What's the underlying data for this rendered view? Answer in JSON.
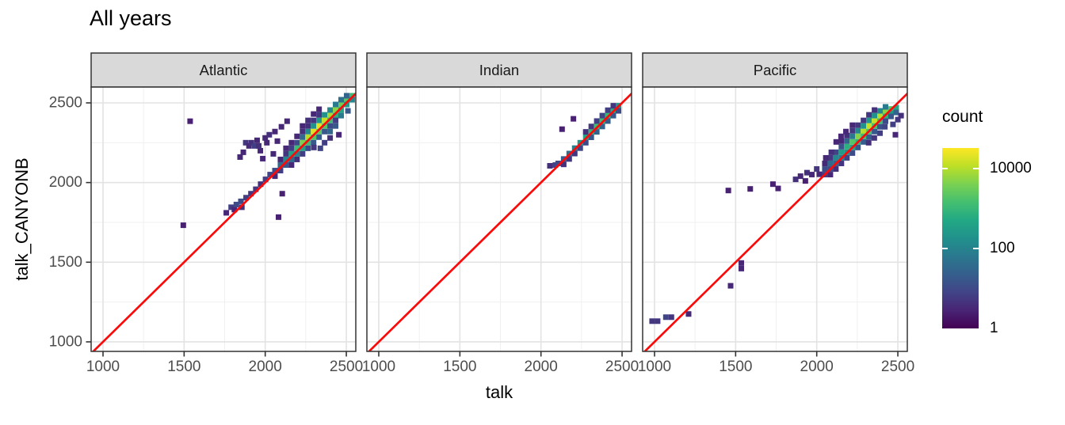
{
  "chart_data": {
    "type": "heatmap",
    "variant": "2d-binned-scatter (geom_bin2d) with identity reference line, faceted by ocean",
    "title": "All years",
    "xlabel": "talk",
    "ylabel": "talk_CANYONB",
    "x_ticks": [
      1000,
      1500,
      2000,
      2500
    ],
    "y_ticks": [
      1000,
      1500,
      2000,
      2500
    ],
    "x_minor": [
      1250,
      1750,
      2250
    ],
    "y_minor": [
      1250,
      1750,
      2250
    ],
    "x_range": [
      930,
      2560
    ],
    "y_range": [
      940,
      2600
    ],
    "bin_width": 34,
    "grid": "major and minor, light gray on white panels",
    "identity_line": "y = x",
    "legend": {
      "title": "count",
      "scale": "log10 viridis",
      "ticks": [
        {
          "label": "10000",
          "log10": 4
        },
        {
          "label": "100",
          "log10": 2
        },
        {
          "label": "1",
          "log10": 0
        }
      ],
      "max_log10": 4.5,
      "position": "right"
    },
    "facets": [
      {
        "label": "Atlantic",
        "bins": [
          [
            2060,
            2075,
            1
          ],
          [
            2060,
            2040,
            0.5
          ],
          [
            2094,
            2110,
            1.5
          ],
          [
            2094,
            2075,
            0.8
          ],
          [
            2094,
            2145,
            0.5
          ],
          [
            2128,
            2145,
            2
          ],
          [
            2128,
            2110,
            1.2
          ],
          [
            2128,
            2180,
            0.7
          ],
          [
            2162,
            2180,
            2.5
          ],
          [
            2162,
            2145,
            1.5
          ],
          [
            2162,
            2215,
            0.8
          ],
          [
            2162,
            2110,
            0.5
          ],
          [
            2196,
            2215,
            3
          ],
          [
            2196,
            2180,
            2
          ],
          [
            2196,
            2250,
            1
          ],
          [
            2196,
            2145,
            0.6
          ],
          [
            2230,
            2250,
            3.5
          ],
          [
            2230,
            2215,
            2.5
          ],
          [
            2230,
            2285,
            1.5
          ],
          [
            2230,
            2180,
            0.8
          ],
          [
            2264,
            2285,
            3.9
          ],
          [
            2264,
            2250,
            3
          ],
          [
            2264,
            2320,
            2
          ],
          [
            2264,
            2215,
            1
          ],
          [
            2264,
            2355,
            0.6
          ],
          [
            2298,
            2320,
            4.2
          ],
          [
            2298,
            2285,
            3.2
          ],
          [
            2298,
            2355,
            2.2
          ],
          [
            2298,
            2250,
            1.2
          ],
          [
            2298,
            2390,
            0.7
          ],
          [
            2332,
            2355,
            4.2
          ],
          [
            2332,
            2320,
            3.3
          ],
          [
            2332,
            2390,
            2.3
          ],
          [
            2332,
            2285,
            1.3
          ],
          [
            2332,
            2425,
            0.7
          ],
          [
            2366,
            2390,
            4
          ],
          [
            2366,
            2355,
            3.2
          ],
          [
            2366,
            2425,
            2.2
          ],
          [
            2366,
            2320,
            1.2
          ],
          [
            2400,
            2420,
            3.8
          ],
          [
            2400,
            2390,
            3
          ],
          [
            2400,
            2455,
            2
          ],
          [
            2400,
            2355,
            1
          ],
          [
            2434,
            2455,
            3.6
          ],
          [
            2434,
            2420,
            2.8
          ],
          [
            2434,
            2490,
            1.8
          ],
          [
            2434,
            2390,
            0.8
          ],
          [
            2468,
            2490,
            3.4
          ],
          [
            2468,
            2455,
            2.6
          ],
          [
            2468,
            2520,
            1.6
          ],
          [
            2502,
            2520,
            3.2
          ],
          [
            2502,
            2490,
            2.4
          ],
          [
            2502,
            2545,
            1.4
          ],
          [
            2536,
            2545,
            3
          ],
          [
            2536,
            2520,
            2
          ],
          [
            2400,
            2320,
            1.5
          ],
          [
            2434,
            2355,
            1.2
          ],
          [
            2400,
            2280,
            0.6
          ],
          [
            2366,
            2250,
            0.8
          ],
          [
            2454,
            2300,
            0.5
          ],
          [
            2468,
            2420,
            1.8
          ],
          [
            2300,
            2220,
            0.7
          ],
          [
            2340,
            2215,
            0.9
          ],
          [
            2510,
            2450,
            1.2
          ],
          [
            2230,
            2320,
            0.6
          ],
          [
            2196,
            2290,
            0.5
          ],
          [
            2264,
            2390,
            0.6
          ],
          [
            2162,
            2250,
            0.5
          ],
          [
            2298,
            2430,
            0.5
          ],
          [
            2332,
            2460,
            0.5
          ],
          [
            2230,
            2355,
            0.5
          ],
          [
            2128,
            2215,
            0.5
          ],
          [
            1845,
            2160,
            0.5
          ],
          [
            1865,
            2190,
            0.5
          ],
          [
            1880,
            2250,
            0.7
          ],
          [
            1900,
            2230,
            0.5
          ],
          [
            1915,
            2250,
            0.6
          ],
          [
            1935,
            2230,
            0.8
          ],
          [
            1950,
            2265,
            0.5
          ],
          [
            1970,
            2200,
            0.5
          ],
          [
            2000,
            2280,
            0.5
          ],
          [
            2025,
            2300,
            0.6
          ],
          [
            2050,
            2180,
            0.5
          ],
          [
            2075,
            2260,
            0.5
          ],
          [
            2060,
            2320,
            0.5
          ],
          [
            1985,
            2150,
            0.5
          ],
          [
            2100,
            2350,
            0.5
          ],
          [
            2135,
            2385,
            0.5
          ],
          [
            1960,
            2230,
            0.6
          ],
          [
            2010,
            2250,
            0.5
          ],
          [
            1760,
            1810,
            0.5
          ],
          [
            1790,
            1845,
            0.8
          ],
          [
            1810,
            1830,
            0.5
          ],
          [
            1822,
            1862,
            1
          ],
          [
            1850,
            1882,
            1
          ],
          [
            1856,
            1845,
            0.6
          ],
          [
            1882,
            1905,
            0.8
          ],
          [
            1912,
            1930,
            0.7
          ],
          [
            1942,
            1958,
            0.7
          ],
          [
            1972,
            1990,
            0.6
          ],
          [
            2002,
            2020,
            0.8
          ],
          [
            2030,
            2050,
            0.9
          ],
          [
            1537,
            2385,
            0.4
          ],
          [
            1495,
            1732,
            0.4
          ],
          [
            2105,
            1930,
            0.4
          ],
          [
            2082,
            1783,
            0.4
          ]
        ]
      },
      {
        "label": "Indian",
        "bins": [
          [
            2055,
            2105,
            0.6
          ],
          [
            2089,
            2110,
            0.9
          ],
          [
            2106,
            2120,
            1
          ],
          [
            2140,
            2148,
            1.3
          ],
          [
            2140,
            2114,
            0.6
          ],
          [
            2174,
            2182,
            1.6
          ],
          [
            2174,
            2148,
            0.7
          ],
          [
            2208,
            2216,
            1.9
          ],
          [
            2208,
            2182,
            0.7
          ],
          [
            2242,
            2250,
            2.3
          ],
          [
            2242,
            2216,
            0.9
          ],
          [
            2276,
            2284,
            2.6
          ],
          [
            2276,
            2250,
            1
          ],
          [
            2276,
            2318,
            0.6
          ],
          [
            2310,
            2318,
            2.9
          ],
          [
            2310,
            2284,
            1.2
          ],
          [
            2310,
            2352,
            0.7
          ],
          [
            2344,
            2352,
            3
          ],
          [
            2344,
            2318,
            1.4
          ],
          [
            2344,
            2386,
            0.8
          ],
          [
            2378,
            2386,
            3
          ],
          [
            2378,
            2352,
            1.4
          ],
          [
            2378,
            2420,
            0.9
          ],
          [
            2412,
            2420,
            2.9
          ],
          [
            2412,
            2386,
            1.3
          ],
          [
            2412,
            2454,
            0.8
          ],
          [
            2446,
            2454,
            2.7
          ],
          [
            2446,
            2420,
            1.2
          ],
          [
            2446,
            2482,
            0.7
          ],
          [
            2478,
            2482,
            2.3
          ],
          [
            2478,
            2450,
            1
          ],
          [
            2200,
            2400,
            0.4
          ],
          [
            2130,
            2335,
            0.4
          ]
        ]
      },
      {
        "label": "Pacific",
        "bins": [
          [
            2050,
            2085,
            1
          ],
          [
            2050,
            2050,
            0.8
          ],
          [
            2050,
            2120,
            0.5
          ],
          [
            2084,
            2120,
            1.5
          ],
          [
            2084,
            2085,
            1
          ],
          [
            2084,
            2155,
            0.7
          ],
          [
            2084,
            2050,
            0.5
          ],
          [
            2118,
            2155,
            2
          ],
          [
            2118,
            2120,
            1.4
          ],
          [
            2118,
            2190,
            0.9
          ],
          [
            2118,
            2085,
            0.6
          ],
          [
            2152,
            2190,
            2.4
          ],
          [
            2152,
            2155,
            1.8
          ],
          [
            2152,
            2225,
            1.1
          ],
          [
            2152,
            2120,
            0.7
          ],
          [
            2152,
            2260,
            0.5
          ],
          [
            2186,
            2225,
            2.8
          ],
          [
            2186,
            2190,
            2.2
          ],
          [
            2186,
            2260,
            1.4
          ],
          [
            2186,
            2155,
            0.9
          ],
          [
            2186,
            2295,
            0.6
          ],
          [
            2220,
            2255,
            3.2
          ],
          [
            2220,
            2220,
            2.5
          ],
          [
            2220,
            2290,
            1.8
          ],
          [
            2220,
            2185,
            1
          ],
          [
            2220,
            2325,
            0.7
          ],
          [
            2254,
            2290,
            3.6
          ],
          [
            2254,
            2255,
            2.8
          ],
          [
            2254,
            2325,
            2
          ],
          [
            2254,
            2220,
            1.2
          ],
          [
            2254,
            2360,
            0.7
          ],
          [
            2288,
            2320,
            3.9
          ],
          [
            2288,
            2290,
            3
          ],
          [
            2288,
            2355,
            2.2
          ],
          [
            2288,
            2255,
            1.3
          ],
          [
            2288,
            2390,
            0.7
          ],
          [
            2322,
            2355,
            4
          ],
          [
            2322,
            2320,
            3.1
          ],
          [
            2322,
            2390,
            2.3
          ],
          [
            2322,
            2285,
            1.3
          ],
          [
            2322,
            2425,
            0.7
          ],
          [
            2356,
            2385,
            4
          ],
          [
            2356,
            2355,
            3.1
          ],
          [
            2356,
            2420,
            2.2
          ],
          [
            2356,
            2320,
            1.2
          ],
          [
            2356,
            2455,
            0.6
          ],
          [
            2390,
            2415,
            3.9
          ],
          [
            2390,
            2385,
            3
          ],
          [
            2390,
            2450,
            2
          ],
          [
            2390,
            2350,
            1.1
          ],
          [
            2424,
            2445,
            3.6
          ],
          [
            2424,
            2415,
            2.8
          ],
          [
            2424,
            2475,
            1.8
          ],
          [
            2424,
            2385,
            1
          ],
          [
            2458,
            2462,
            3.2
          ],
          [
            2458,
            2435,
            2.4
          ],
          [
            2458,
            2415,
            1.2
          ],
          [
            2490,
            2470,
            2.6
          ],
          [
            2490,
            2440,
            1.4
          ],
          [
            2470,
            2365,
            0.8
          ],
          [
            2500,
            2395,
            0.7
          ],
          [
            2520,
            2420,
            0.6
          ],
          [
            2485,
            2300,
            0.5
          ],
          [
            2390,
            2310,
            0.8
          ],
          [
            2420,
            2350,
            0.9
          ],
          [
            2355,
            2280,
            0.7
          ],
          [
            2320,
            2250,
            0.6
          ],
          [
            2180,
            2320,
            0.5
          ],
          [
            2150,
            2290,
            0.5
          ],
          [
            2220,
            2360,
            0.5
          ],
          [
            2120,
            2255,
            0.5
          ],
          [
            2090,
            2190,
            0.6
          ],
          [
            2056,
            2155,
            0.5
          ],
          [
            1870,
            2020,
            0.6
          ],
          [
            1900,
            2040,
            0.5
          ],
          [
            1930,
            2010,
            0.4
          ],
          [
            1940,
            2062,
            0.6
          ],
          [
            1970,
            2050,
            0.5
          ],
          [
            2000,
            2085,
            0.7
          ],
          [
            2016,
            2052,
            0.5
          ],
          [
            1590,
            1960,
            0.4
          ],
          [
            1730,
            1990,
            0.4
          ],
          [
            1762,
            1963,
            0.4
          ],
          [
            1455,
            1950,
            0.4
          ],
          [
            985,
            1130,
            0.7
          ],
          [
            1019,
            1130,
            0.7
          ],
          [
            1070,
            1155,
            0.9
          ],
          [
            1104,
            1155,
            0.7
          ],
          [
            1210,
            1175,
            0.5
          ],
          [
            1469,
            1352,
            0.5
          ],
          [
            1535,
            1460,
            0.5
          ],
          [
            1535,
            1495,
            0.5
          ]
        ]
      }
    ],
    "colors": {
      "identity_line": "#fb0a0a",
      "strip_fill": "#d9d9d9",
      "panel_border": "#333333",
      "panel_bg": "#ffffff",
      "grid_major": "#e3e3e3",
      "grid_minor": "#f0f0f0",
      "axis_text": "#4d4d4d",
      "tick_mark": "#333333",
      "viridis_stops": [
        "#440154",
        "#482475",
        "#414487",
        "#355f8d",
        "#2a788e",
        "#21918c",
        "#22a884",
        "#44bf70",
        "#7ad151",
        "#bddf26",
        "#fde725"
      ]
    }
  }
}
